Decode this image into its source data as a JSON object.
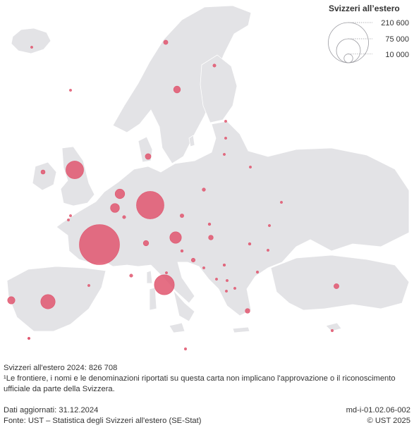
{
  "legend": {
    "title": "Svizzeri all’estero",
    "values": [
      "210 600",
      "75 000",
      "10 000"
    ]
  },
  "footer": {
    "total": "Svizzeri all'estero 2024: 826 708",
    "note": "¹Le frontiere, i nomi e le denominazioni riportati su questa carta non implicano l'approvazione o il riconoscimento ufficiale da parte della Svizzera.",
    "updated": "Dati aggiornati: 31.12.2024",
    "source": "Fonte: UST – Statistica degli Svizzeri all'estero (SE-Stat)",
    "code": "md-i-01.02.06-002",
    "copyright": "© UST 2025"
  },
  "colors": {
    "land": "#e3e3e6",
    "border": "#ffffff",
    "bubble": "#e0566e"
  },
  "bubbles": [
    {
      "country": "France",
      "value": 210600
    },
    {
      "country": "Germany",
      "value": 99000
    },
    {
      "country": "Italy",
      "value": 52000
    },
    {
      "country": "United Kingdom",
      "value": 41000
    },
    {
      "country": "Spain",
      "value": 27000
    },
    {
      "country": "Austria",
      "value": 17500
    },
    {
      "country": "Netherlands",
      "value": 12000
    },
    {
      "country": "Belgium",
      "value": 10500
    },
    {
      "country": "Portugal",
      "value": 7000
    },
    {
      "country": "Sweden",
      "value": 6200
    },
    {
      "country": "Denmark",
      "value": 4300
    },
    {
      "country": "Ireland",
      "value": 2300
    },
    {
      "country": "Norway",
      "value": 2500
    },
    {
      "country": "Liechtenstein",
      "value": 3800
    },
    {
      "country": "Turkey",
      "value": 3400
    },
    {
      "country": "Greece",
      "value": 2900
    },
    {
      "country": "Czech Republic",
      "value": 1800
    },
    {
      "country": "Hungary",
      "value": 2900
    },
    {
      "country": "Croatia",
      "value": 2000
    },
    {
      "country": "Poland",
      "value": 1400
    },
    {
      "country": "Finland",
      "value": 1200
    },
    {
      "country": "Luxembourg",
      "value": 1300
    },
    {
      "country": "Monaco",
      "value": 1300
    },
    {
      "country": "Slovenia",
      "value": 900
    },
    {
      "country": "Romania",
      "value": 900
    },
    {
      "country": "Slovakia",
      "value": 900
    },
    {
      "country": "Serbia",
      "value": 800
    },
    {
      "country": "Bulgaria",
      "value": 700
    },
    {
      "country": "Cyprus",
      "value": 700
    },
    {
      "country": "Malta",
      "value": 700
    },
    {
      "country": "Iceland",
      "value": 500
    },
    {
      "country": "Bosnia and Herzegovina",
      "value": 600
    },
    {
      "country": "Montenegro",
      "value": 400
    },
    {
      "country": "Albania",
      "value": 400
    },
    {
      "country": "North Macedonia",
      "value": 400
    },
    {
      "country": "Kosovo",
      "value": 400
    },
    {
      "country": "Ukraine",
      "value": 500
    },
    {
      "country": "Russia",
      "value": 500
    },
    {
      "country": "Estonia",
      "value": 300
    },
    {
      "country": "Latvia",
      "value": 300
    },
    {
      "country": "Lithuania",
      "value": 300
    },
    {
      "country": "Belarus",
      "value": 200
    },
    {
      "country": "Moldova",
      "value": 200
    },
    {
      "country": "Andorra",
      "value": 300
    },
    {
      "country": "San Marino",
      "value": 200
    },
    {
      "country": "Gibraltar",
      "value": 200
    },
    {
      "country": "Faroe Islands",
      "value": 100
    },
    {
      "country": "Jersey",
      "value": 200
    },
    {
      "country": "Guernsey",
      "value": 200
    },
    {
      "country": "Canary Islands",
      "value": 200
    }
  ]
}
